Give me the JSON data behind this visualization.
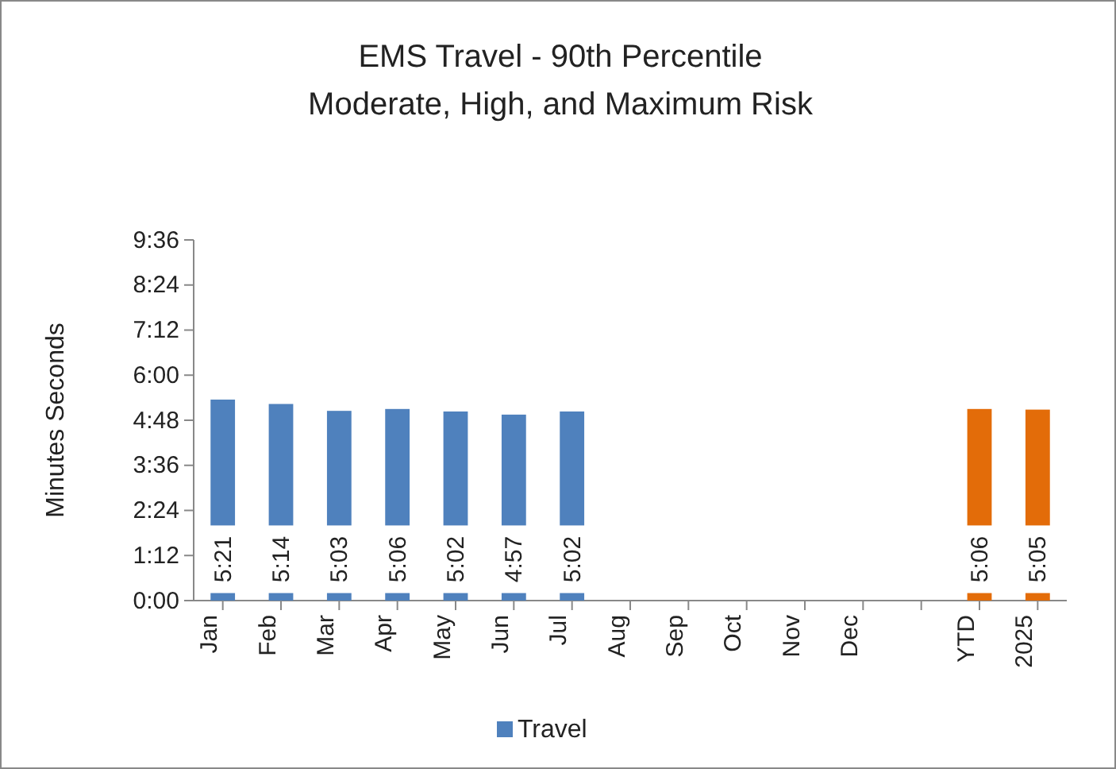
{
  "chart_data": {
    "type": "bar",
    "title": "EMS Travel - 90th Percentile",
    "subtitle": "Moderate, High, and Maximum Risk",
    "ylabel": "Minutes Seconds",
    "categories": [
      "Jan",
      "Feb",
      "Mar",
      "Apr",
      "May",
      "Jun",
      "Jul",
      "Aug",
      "Sep",
      "Oct",
      "Nov",
      "Dec",
      null,
      "YTD",
      "2025"
    ],
    "series": [
      {
        "name": "Travel",
        "color": "#4f81bd",
        "colors": [
          "#4f81bd",
          "#4f81bd",
          "#4f81bd",
          "#4f81bd",
          "#4f81bd",
          "#4f81bd",
          "#4f81bd",
          null,
          null,
          null,
          null,
          null,
          null,
          "#e36c09",
          "#e36c09"
        ],
        "values": [
          321,
          314,
          303,
          306,
          302,
          297,
          302,
          null,
          null,
          null,
          null,
          null,
          null,
          306,
          305
        ],
        "value_labels": [
          "5:21",
          "5:14",
          "5:03",
          "5:06",
          "5:02",
          "4:57",
          "5:02",
          null,
          null,
          null,
          null,
          null,
          null,
          "5:06",
          "5:05"
        ]
      }
    ],
    "ylim": [
      0,
      576
    ],
    "yticks": [
      {
        "value": 0,
        "label": "0:00"
      },
      {
        "value": 72,
        "label": "1:12"
      },
      {
        "value": 144,
        "label": "2:24"
      },
      {
        "value": 216,
        "label": "3:36"
      },
      {
        "value": 288,
        "label": "4:48"
      },
      {
        "value": 360,
        "label": "6:00"
      },
      {
        "value": 432,
        "label": "7:12"
      },
      {
        "value": 504,
        "label": "8:24"
      },
      {
        "value": 576,
        "label": "9:36"
      }
    ],
    "grid": false,
    "legend": "bottom"
  }
}
